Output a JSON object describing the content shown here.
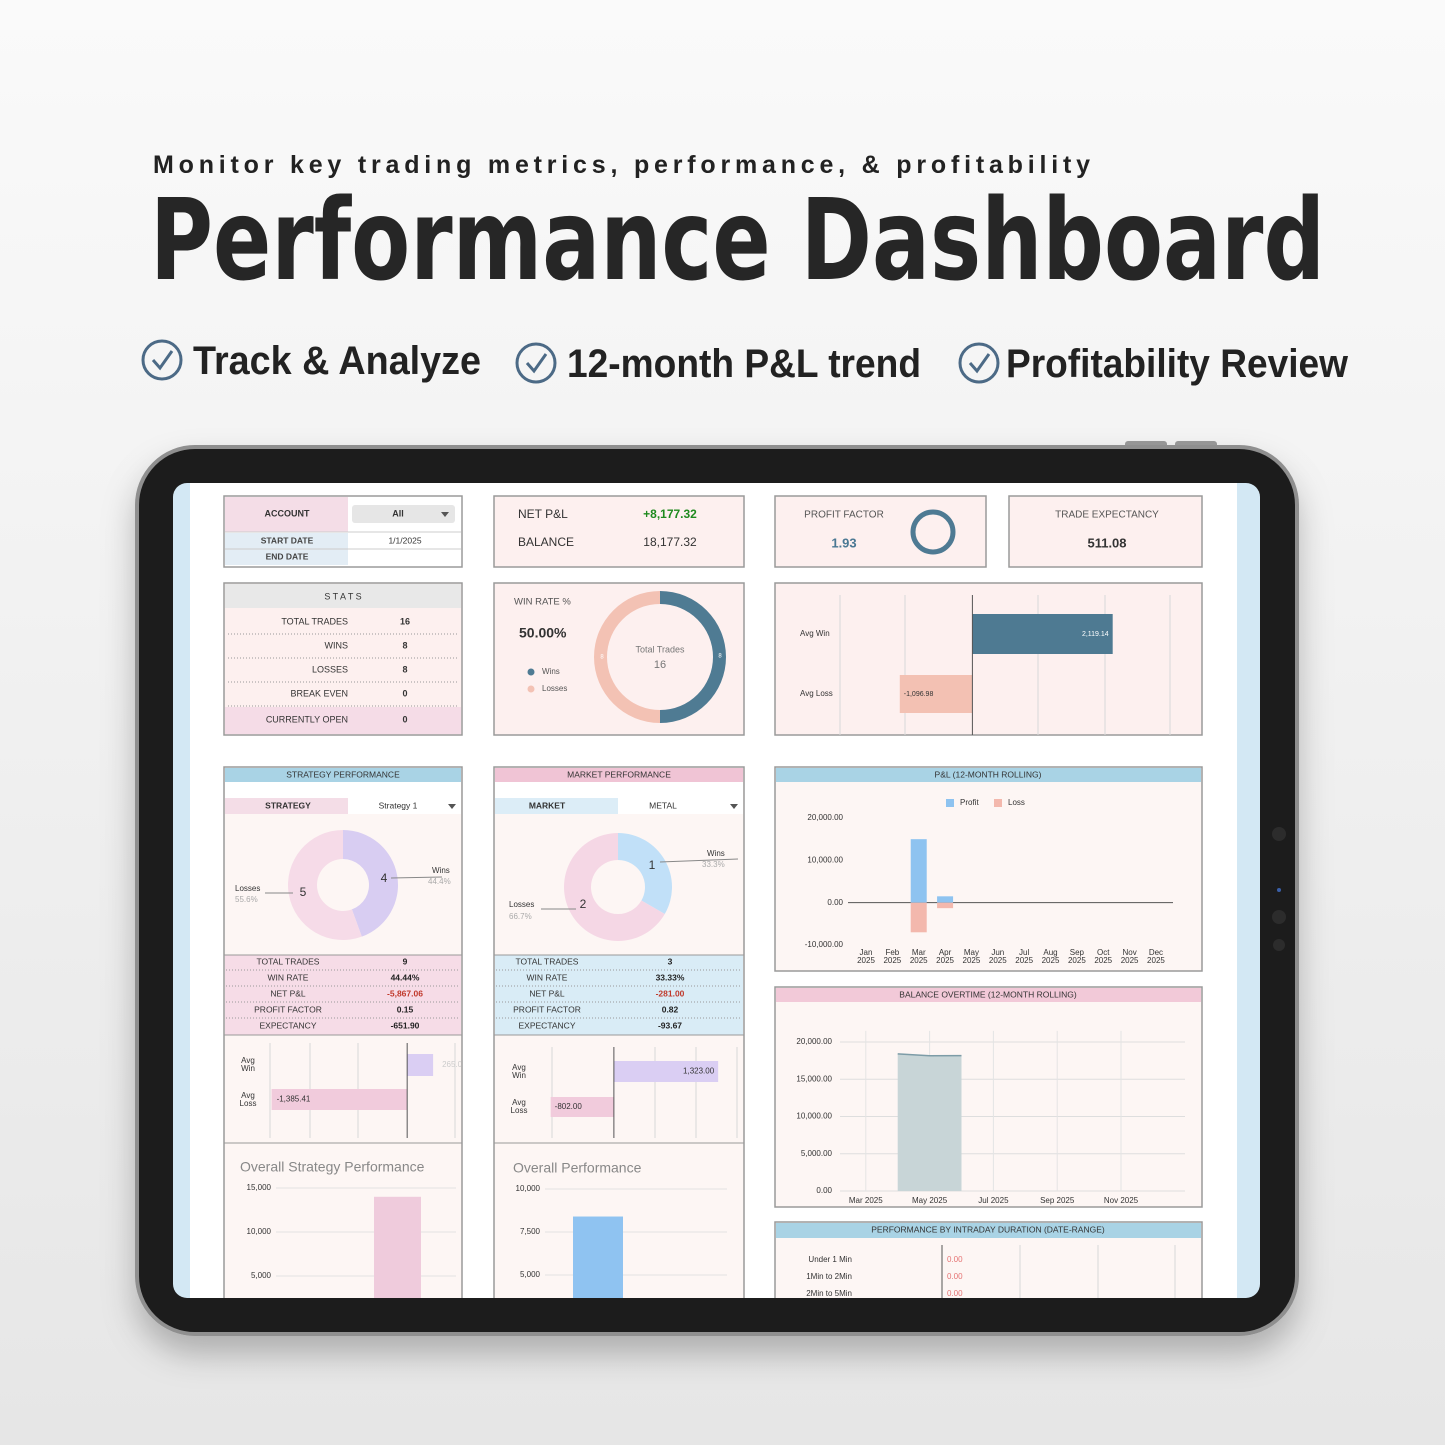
{
  "header": {
    "subtitle": "Monitor key trading metrics, performance, & profitability",
    "title": "Performance Dashboard"
  },
  "features": [
    "Track & Analyze",
    "12-month P&L trend",
    "Profitability Review"
  ],
  "filters": {
    "account_label": "ACCOUNT",
    "account_value": "All",
    "start_date_label": "START DATE",
    "start_date": "1/1/2025",
    "end_date_label": "END DATE"
  },
  "summary": {
    "net_pnl_label": "NET P&L",
    "net_pnl": "+8,177.32",
    "balance_label": "BALANCE",
    "balance": "18,177.32",
    "profit_factor_label": "PROFIT FACTOR",
    "profit_factor": "1.93",
    "trade_expectancy_label": "TRADE EXPECTANCY",
    "trade_expectancy": "511.08"
  },
  "stats": {
    "title": "S T A T S",
    "rows": [
      [
        "TOTAL TRADES",
        "16"
      ],
      [
        "WINS",
        "8"
      ],
      [
        "LOSSES",
        "8"
      ],
      [
        "BREAK EVEN",
        "0"
      ],
      [
        "CURRENTLY OPEN",
        "0"
      ]
    ]
  },
  "strategy": {
    "header": "STRATEGY PERFORMANCE",
    "selector_label": "STRATEGY",
    "selector_value": "Strategy 1",
    "rows": [
      [
        "TOTAL TRADES",
        "9"
      ],
      [
        "WIN RATE",
        "44.44%"
      ],
      [
        "NET P&L",
        "-5,867.06"
      ],
      [
        "PROFIT FACTOR",
        "0.15"
      ],
      [
        "EXPECTANCY",
        "-651.90"
      ]
    ]
  },
  "market": {
    "header": "MARKET PERFORMANCE",
    "selector_label": "MARKET",
    "selector_value": "METAL",
    "rows": [
      [
        "TOTAL TRADES",
        "3"
      ],
      [
        "WIN RATE",
        "33.33%"
      ],
      [
        "NET P&L",
        "-281.00"
      ],
      [
        "PROFIT FACTOR",
        "0.82"
      ],
      [
        "EXPECTANCY",
        "-93.67"
      ]
    ]
  },
  "chart_data": [
    {
      "type": "donut",
      "title": "WIN RATE %",
      "headline": "50.00%",
      "center_label": "Total Trades",
      "center_value": 16,
      "categories": [
        "Wins",
        "Losses"
      ],
      "values": [
        8,
        8
      ],
      "colors": [
        "#4f7b93",
        "#f3c2b4"
      ]
    },
    {
      "type": "hbar",
      "categories": [
        "Avg Win",
        "Avg Loss"
      ],
      "values": [
        2119.14,
        -1096.98
      ],
      "value_labels": [
        "2,119.14",
        "-1,096.98"
      ],
      "colors": [
        "#4e7a92",
        "#f3c1b3"
      ],
      "xlim": [
        -2000,
        3000
      ]
    },
    {
      "type": "donut",
      "categories": [
        "Wins",
        "Losses"
      ],
      "values": [
        4,
        5
      ],
      "share_labels": [
        "44.4%",
        "55.6%"
      ],
      "colors": [
        "#d8cdf2",
        "#f6dbe8"
      ]
    },
    {
      "type": "donut",
      "categories": [
        "Wins",
        "Losses"
      ],
      "values": [
        1,
        2
      ],
      "share_labels": [
        "33.3%",
        "66.7%"
      ],
      "colors": [
        "#c1e0f8",
        "#f5d7e5"
      ]
    },
    {
      "type": "hbar",
      "categories": [
        "Avg Win",
        "Avg Loss"
      ],
      "values": [
        265,
        -1385.41
      ],
      "value_labels": [
        "265.00",
        "-1,385.41"
      ],
      "colors": [
        "#dacef3",
        "#f1cbdc"
      ],
      "xlim": [
        -1800,
        550
      ]
    },
    {
      "type": "hbar",
      "categories": [
        "Avg Win",
        "Avg Loss"
      ],
      "values": [
        1323,
        -802
      ],
      "value_labels": [
        "1,323.00",
        "-802.00"
      ],
      "colors": [
        "#dacef3",
        "#f1cbdc"
      ],
      "xlim": [
        -950,
        1600
      ]
    },
    {
      "type": "bar",
      "title": "Overall Strategy Performance",
      "categories": [
        null
      ],
      "values": [
        14000
      ],
      "color": "#efcbdc",
      "ylim": [
        0,
        15000
      ],
      "yticks": [
        {
          "value": 5000,
          "label": "5,000"
        },
        {
          "value": 10000,
          "label": "10,000"
        },
        {
          "value": 15000,
          "label": "15,000"
        }
      ]
    },
    {
      "type": "bar",
      "title": "Overall Performance",
      "categories": [
        null
      ],
      "values": [
        8400
      ],
      "color": "#8fc3f1",
      "ylim": [
        0,
        10000
      ],
      "yticks": [
        {
          "value": 5000,
          "label": "5,000"
        },
        {
          "value": 7500,
          "label": "7,500"
        },
        {
          "value": 10000,
          "label": "10,000"
        }
      ]
    },
    {
      "type": "bar",
      "title": "P&L (12-MONTH ROLLING)",
      "categories": [
        "Jan 2025",
        "Feb 2025",
        "Mar 2025",
        "Apr 2025",
        "May 2025",
        "Jun 2025",
        "Jul 2025",
        "Aug 2025",
        "Sep 2025",
        "Oct 2025",
        "Nov 2025",
        "Dec 2025"
      ],
      "series": [
        {
          "name": "Profit",
          "color": "#8ec3f0",
          "values": [
            0,
            0,
            15000,
            1500,
            0,
            0,
            0,
            0,
            0,
            0,
            0,
            0
          ]
        },
        {
          "name": "Loss",
          "color": "#f3b8ad",
          "values": [
            0,
            0,
            -7000,
            -1300,
            0,
            0,
            0,
            0,
            0,
            0,
            0,
            0
          ]
        }
      ],
      "ylim": [
        -10000,
        20000
      ],
      "yticks": [
        {
          "value": -10000,
          "label": "-10,000.00"
        },
        {
          "value": 0,
          "label": "0.00"
        },
        {
          "value": 10000,
          "label": "10,000.00"
        },
        {
          "value": 20000,
          "label": "20,000.00"
        }
      ]
    },
    {
      "type": "area",
      "title": "BALANCE OVERTIME (12-MONTH ROLLING)",
      "categories": [
        null,
        null,
        "Mar 2025",
        null,
        "May 2025",
        null,
        "Jul 2025",
        null,
        "Sep 2025",
        null,
        "Nov 2025",
        null
      ],
      "values": [
        null,
        null,
        null,
        18400,
        18150,
        18177.32,
        null,
        null,
        null,
        null,
        null,
        null
      ],
      "color": "#c8d5d7",
      "line_color": "#7d9ca7",
      "ylim": [
        0,
        21500
      ],
      "yticks": [
        {
          "value": 0,
          "label": "0.00"
        },
        {
          "value": 5000,
          "label": "5,000.00"
        },
        {
          "value": 10000,
          "label": "10,000.00"
        },
        {
          "value": 15000,
          "label": "15,000.00"
        },
        {
          "value": 20000,
          "label": "20,000.00"
        }
      ],
      "grid": true
    },
    {
      "type": "hbar",
      "title": "PERFORMANCE BY INTRADAY DURATION (DATE-RANGE)",
      "categories": [
        "Under 1 Min",
        "1Min to 2Min",
        "2Min to 5Min"
      ],
      "values": [
        0,
        0,
        0
      ],
      "value_labels": [
        "0.00",
        "0.00",
        "0.00"
      ],
      "color": "#e57373"
    }
  ]
}
